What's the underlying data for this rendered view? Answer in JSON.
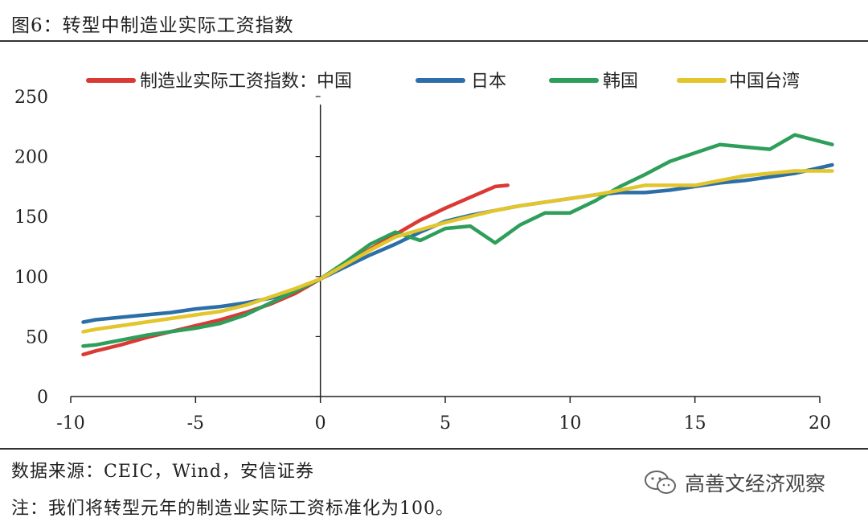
{
  "header": {
    "title": "图6：转型中制造业实际工资指数"
  },
  "footer": {
    "source": "数据来源：CEIC，Wind，安信证券",
    "note": "注：我们将转型元年的制造业实际工资标准化为100。",
    "watermark": "高善文经济观察",
    "watermark_icon": "wechat-logo-icon"
  },
  "chart_data": {
    "type": "line",
    "title": "图6：转型中制造业实际工资指数",
    "xlabel": "",
    "ylabel": "",
    "xlim": [
      -10,
      20
    ],
    "ylim": [
      0,
      250
    ],
    "xticks": [
      -10,
      -5,
      0,
      5,
      10,
      15,
      20
    ],
    "yticks": [
      0,
      50,
      100,
      150,
      200,
      250
    ],
    "x_tick_labels": [
      "-10",
      "-5",
      "0",
      "5",
      "10",
      "15",
      "20"
    ],
    "y_tick_labels": [
      "0",
      "50",
      "100",
      "150",
      "200",
      "250"
    ],
    "grid": false,
    "legend_position": "top",
    "series": [
      {
        "name": "制造业实际工资指数：中国",
        "color": "#d93a34",
        "x": [
          -9.5,
          -9,
          -8,
          -7,
          -6,
          -5,
          -4,
          -3,
          -2,
          -1,
          0,
          1,
          2,
          3,
          4,
          5,
          6,
          7,
          7.5
        ],
        "values": [
          35,
          38,
          43,
          49,
          54,
          59,
          64,
          70,
          77,
          86,
          98,
          110,
          123,
          135,
          147,
          157,
          166,
          175,
          176
        ]
      },
      {
        "name": "日本",
        "color": "#2c6fa8",
        "x": [
          -9.5,
          -9,
          -8,
          -7,
          -6,
          -5,
          -4,
          -3,
          -2,
          -1,
          0,
          1,
          2,
          3,
          4,
          5,
          6,
          7,
          8,
          9,
          10,
          11,
          12,
          13,
          14,
          15,
          16,
          17,
          18,
          19,
          20.5
        ],
        "values": [
          62,
          64,
          66,
          68,
          70,
          73,
          75,
          78,
          82,
          88,
          98,
          108,
          118,
          127,
          137,
          146,
          151,
          155,
          159,
          162,
          165,
          168,
          170,
          170,
          172,
          175,
          178,
          180,
          183,
          186,
          193
        ]
      },
      {
        "name": "韩国",
        "color": "#2e9e5b",
        "x": [
          -9.5,
          -9,
          -8,
          -7,
          -6,
          -5,
          -4,
          -3,
          -2,
          -1,
          0,
          1,
          2,
          3,
          4,
          5,
          6,
          7,
          8,
          9,
          10,
          11,
          12,
          13,
          14,
          15,
          16,
          17,
          18,
          19,
          20.5
        ],
        "values": [
          42,
          43,
          47,
          51,
          54,
          57,
          61,
          68,
          78,
          88,
          98,
          112,
          127,
          137,
          130,
          140,
          142,
          128,
          143,
          153,
          153,
          163,
          175,
          185,
          196,
          203,
          210,
          208,
          206,
          218,
          210
        ]
      },
      {
        "name": "中国台湾",
        "color": "#e3c52c",
        "x": [
          -9.5,
          -9,
          -8,
          -7,
          -6,
          -5,
          -4,
          -3,
          -2,
          -1,
          0,
          1,
          2,
          3,
          4,
          5,
          6,
          7,
          8,
          9,
          10,
          11,
          12,
          13,
          14,
          15,
          16,
          17,
          18,
          19,
          20.5
        ],
        "values": [
          54,
          56,
          59,
          62,
          65,
          68,
          71,
          76,
          83,
          90,
          98,
          110,
          122,
          133,
          139,
          145,
          150,
          155,
          159,
          162,
          165,
          168,
          172,
          176,
          176,
          176,
          180,
          184,
          186,
          188,
          188
        ]
      }
    ]
  }
}
